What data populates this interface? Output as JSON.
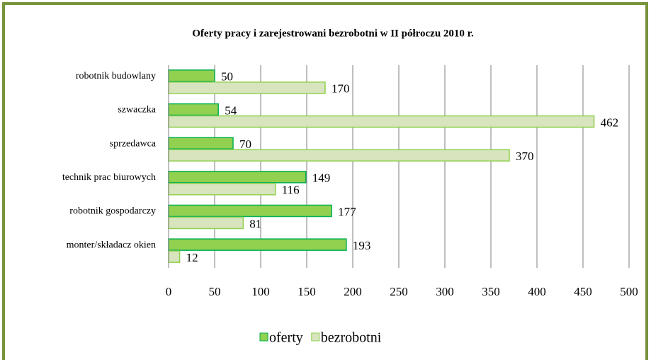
{
  "chart_data": {
    "type": "bar",
    "orientation": "horizontal",
    "title": "Oferty pracy i zarejestrowani bezrobotni w II półroczu 2010 r.",
    "categories": [
      "robotnik budowlany",
      "szwaczka",
      "sprzedawca",
      "technik prac biurowych",
      "robotnik gospodarczy",
      "monter/składacz okien"
    ],
    "series": [
      {
        "name": "oferty",
        "color": "#92d050",
        "values": [
          50,
          54,
          70,
          149,
          177,
          193
        ]
      },
      {
        "name": "bezrobotni",
        "color": "#d7e4bd",
        "values": [
          170,
          462,
          370,
          116,
          81,
          12
        ]
      }
    ],
    "xlim": [
      0,
      500
    ],
    "xticks": [
      0,
      50,
      100,
      150,
      200,
      250,
      300,
      350,
      400,
      450,
      500
    ],
    "grid": true,
    "legend": "bottom"
  }
}
